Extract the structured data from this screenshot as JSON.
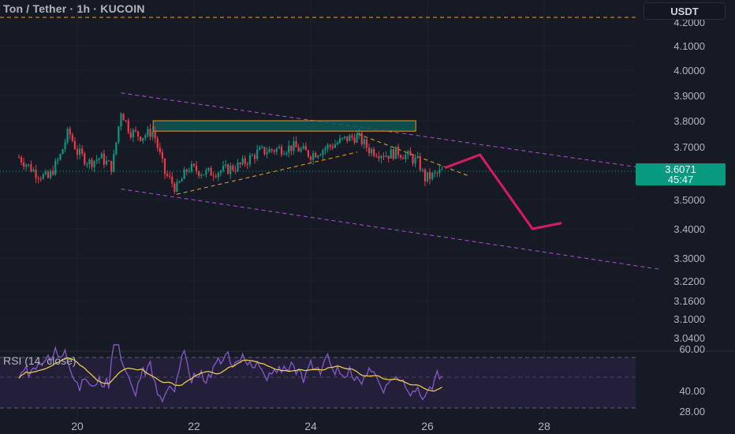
{
  "header": {
    "title": "Ton / Tether · 1h · KUCOIN",
    "currency_button": "USDT"
  },
  "price_badge": {
    "price": "3.6071",
    "countdown": "45:47"
  },
  "rsi": {
    "label": "RSI (14, close)",
    "ticks": [
      "60.00",
      "40.00",
      "28.00"
    ]
  },
  "colors": {
    "background": "#161a25",
    "up": "#089981",
    "down": "#f23645",
    "channel": "#b04fd6",
    "wedge": "#f7a21b",
    "arrow": "#d81b60",
    "rsi_line": "#7e57c2",
    "rsi_ma": "#f5d547",
    "zone_fill": "#0f5b55",
    "zone_border": "#f7931a"
  },
  "chart_data": {
    "type": "candlestick",
    "title": "Ton / Tether · 1h · KUCOIN",
    "x_ticks": [
      "20",
      "22",
      "24",
      "26",
      "28"
    ],
    "y_ticks": [
      "4.2000",
      "4.1000",
      "4.0000",
      "3.9000",
      "3.8000",
      "3.7000",
      "3.5000",
      "3.4000",
      "3.3000",
      "3.2200",
      "3.1600",
      "3.1000",
      "3.0400"
    ],
    "ylim": [
      3.0,
      4.25
    ],
    "close_series": [
      {
        "day": 19.0,
        "close": 3.66
      },
      {
        "day": 19.3,
        "close": 3.6
      },
      {
        "day": 19.5,
        "close": 3.58
      },
      {
        "day": 19.7,
        "close": 3.66
      },
      {
        "day": 19.85,
        "close": 3.76
      },
      {
        "day": 20.0,
        "close": 3.68
      },
      {
        "day": 20.2,
        "close": 3.64
      },
      {
        "day": 20.4,
        "close": 3.66
      },
      {
        "day": 20.6,
        "close": 3.62
      },
      {
        "day": 20.75,
        "close": 3.84
      },
      {
        "day": 20.9,
        "close": 3.76
      },
      {
        "day": 21.1,
        "close": 3.74
      },
      {
        "day": 21.3,
        "close": 3.76
      },
      {
        "day": 21.5,
        "close": 3.6
      },
      {
        "day": 21.7,
        "close": 3.54
      },
      {
        "day": 21.9,
        "close": 3.62
      },
      {
        "day": 22.2,
        "close": 3.6
      },
      {
        "day": 22.5,
        "close": 3.61
      },
      {
        "day": 22.8,
        "close": 3.63
      },
      {
        "day": 23.1,
        "close": 3.68
      },
      {
        "day": 23.4,
        "close": 3.69
      },
      {
        "day": 23.7,
        "close": 3.7
      },
      {
        "day": 24.0,
        "close": 3.67
      },
      {
        "day": 24.3,
        "close": 3.7
      },
      {
        "day": 24.6,
        "close": 3.73
      },
      {
        "day": 24.8,
        "close": 3.74
      },
      {
        "day": 25.0,
        "close": 3.69
      },
      {
        "day": 25.3,
        "close": 3.67
      },
      {
        "day": 25.5,
        "close": 3.68
      },
      {
        "day": 25.7,
        "close": 3.66
      },
      {
        "day": 25.85,
        "close": 3.64
      },
      {
        "day": 25.95,
        "close": 3.58
      },
      {
        "day": 26.1,
        "close": 3.59
      },
      {
        "day": 26.25,
        "close": 3.6071
      }
    ],
    "dashed_level": 4.2,
    "supply_zone": {
      "x_from": 21.3,
      "x_to": 25.8,
      "y_low": 3.76,
      "y_high": 3.8
    },
    "projection": [
      {
        "day": 26.3,
        "price": 3.62
      },
      {
        "day": 26.9,
        "price": 3.67
      },
      {
        "day": 27.8,
        "price": 3.4
      },
      {
        "day": 28.3,
        "price": 3.42
      }
    ],
    "rsi_range": [
      20,
      70
    ]
  }
}
